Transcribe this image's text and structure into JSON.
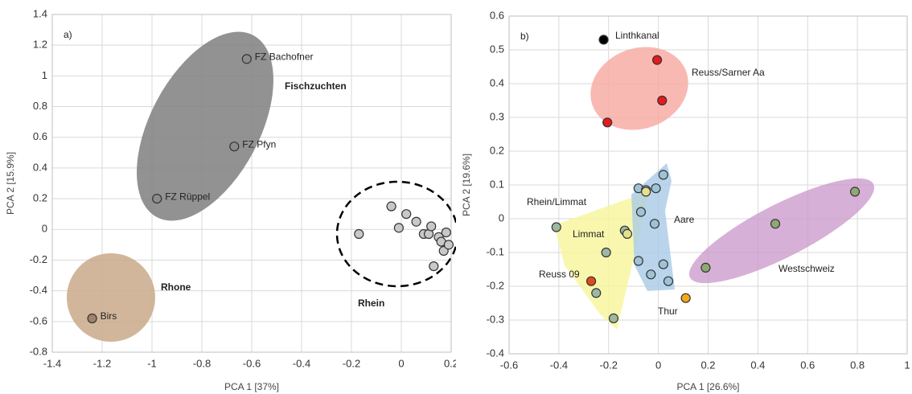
{
  "chart_data": [
    {
      "type": "scatter",
      "panel_label": "a)",
      "x_label": "PCA 1 [37%]",
      "y_label": "PCA 2 [15.9%]",
      "xlim": [
        -1.4,
        0.2
      ],
      "ylim": [
        -0.8,
        1.4
      ],
      "xticks": [
        -1.4,
        -1.2,
        -1,
        -0.8,
        -0.6,
        -0.4,
        -0.2,
        0,
        0.2
      ],
      "yticks": [
        -0.8,
        -0.6,
        -0.4,
        -0.2,
        0,
        0.2,
        0.4,
        0.6,
        0.8,
        1,
        1.2,
        1.4
      ],
      "grid": true,
      "series": [
        {
          "name": "Fischzuchten",
          "color": "#8c8c8c",
          "label_color": "#000000",
          "x": [
            -0.62,
            -0.67,
            -0.98
          ],
          "y": [
            1.11,
            0.54,
            0.2
          ],
          "labels": [
            "FZ Bachofner",
            "FZ Pfyn",
            "FZ Rüppel"
          ]
        },
        {
          "name": "Rhone",
          "color": "#a0826a",
          "label_color": "#000000",
          "x": [
            -1.24
          ],
          "y": [
            -0.58
          ],
          "labels": [
            "Birs"
          ]
        },
        {
          "name": "Rhein",
          "color": "#c8c8c8",
          "label_color": "#000000",
          "x": [
            -0.17,
            -0.04,
            -0.01,
            0.02,
            0.06,
            0.09,
            0.11,
            0.12,
            0.15,
            0.16,
            0.17,
            0.18,
            0.19,
            0.13
          ],
          "y": [
            -0.03,
            0.15,
            0.01,
            0.1,
            0.05,
            -0.03,
            -0.03,
            0.02,
            -0.05,
            -0.08,
            -0.14,
            -0.02,
            -0.1,
            -0.24
          ]
        }
      ]
    },
    {
      "type": "scatter",
      "panel_label": "b)",
      "x_label": "PCA 1 [26.6%]",
      "y_label": "PCA 2 [19.6%]",
      "xlim": [
        -0.6,
        1
      ],
      "ylim": [
        -0.4,
        0.6
      ],
      "xticks": [
        -0.6,
        -0.4,
        -0.2,
        0,
        0.2,
        0.4,
        0.6,
        0.8,
        1
      ],
      "yticks": [
        -0.4,
        -0.3,
        -0.2,
        -0.1,
        0,
        0.1,
        0.2,
        0.3,
        0.4,
        0.5,
        0.6
      ],
      "grid": true,
      "series": [
        {
          "name": "Linthkanal",
          "color": "#000000",
          "label_color": "#000000",
          "x": [
            -0.22
          ],
          "y": [
            0.53
          ]
        },
        {
          "name": "Reuss/Sarner Aa",
          "color": "#e41a1c",
          "label_color": "#e41a1c",
          "x": [
            -0.005,
            0.015,
            -0.205
          ],
          "y": [
            0.47,
            0.35,
            0.285
          ]
        },
        {
          "name": "Aare",
          "color": "#9fc3d6",
          "label_color": "#2e75b6",
          "x": [
            -0.08,
            -0.05,
            -0.01,
            0.02,
            -0.07,
            -0.015,
            -0.08,
            0.02,
            -0.03,
            0.04
          ],
          "y": [
            0.09,
            0.085,
            0.09,
            0.13,
            0.02,
            -0.015,
            -0.125,
            -0.135,
            -0.165,
            -0.185
          ]
        },
        {
          "name": "Rhein/Limmat",
          "color": "#9db8a2",
          "label_color": "#000000",
          "x": [
            -0.41,
            -0.135,
            -0.21,
            -0.25,
            -0.18
          ],
          "y": [
            -0.025,
            -0.035,
            -0.1,
            -0.22,
            -0.295
          ]
        },
        {
          "name": "Limmat",
          "color": "#e6e08c",
          "label_color": "#000000",
          "x": [
            -0.125,
            -0.05
          ],
          "y": [
            -0.045,
            0.08
          ]
        },
        {
          "name": "Reuss 09",
          "color": "#e04a1f",
          "label_color": "#000000",
          "x": [
            -0.27
          ],
          "y": [
            -0.185
          ]
        },
        {
          "name": "Thur",
          "color": "#f5a814",
          "label_color": "#e07b00",
          "x": [
            0.11
          ],
          "y": [
            -0.235
          ]
        },
        {
          "name": "Westschweiz",
          "color": "#8fa874",
          "label_color": "#a020a0",
          "x": [
            0.79,
            0.47,
            0.19
          ],
          "y": [
            0.08,
            -0.015,
            -0.145
          ]
        }
      ]
    }
  ]
}
